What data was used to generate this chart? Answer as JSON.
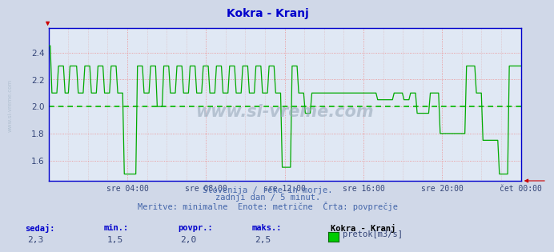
{
  "title": "Kokra - Kranj",
  "title_color": "#0000cc",
  "bg_color": "#d0d8e8",
  "plot_bg_color": "#e0e8f4",
  "avg_line_color": "#00bb00",
  "avg_value": 2.0,
  "line_color": "#00aa00",
  "axis_color": "#0000cc",
  "ylim": [
    1.45,
    2.58
  ],
  "yticks": [
    1.6,
    1.8,
    2.0,
    2.2,
    2.4
  ],
  "xticklabels": [
    "sre 04:00",
    "sre 08:00",
    "sre 12:00",
    "sre 16:00",
    "sre 20:00",
    "čet 00:00"
  ],
  "xtick_count": 6,
  "footnote1": "Slovenija / reke in morje.",
  "footnote2": "zadnji dan / 5 minut.",
  "footnote3": "Meritve: minimalne  Enote: metrične  Črta: povprečje",
  "legend_title": "Kokra - Kranj",
  "legend_label": "pretok[m3/s]",
  "stat_labels": [
    "sedaj:",
    "min.:",
    "povpr.:",
    "maks.:"
  ],
  "stat_values": [
    "2,3",
    "1,5",
    "2,0",
    "2,5"
  ],
  "watermark": "www.si-vreme.com"
}
